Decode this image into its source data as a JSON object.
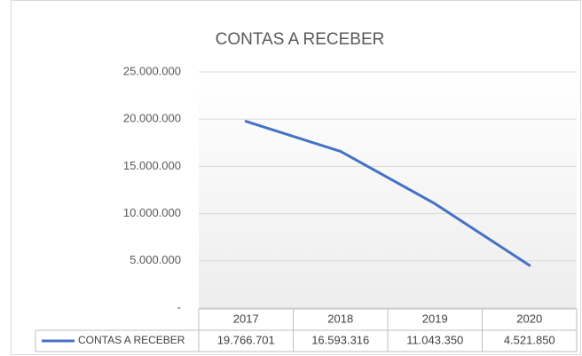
{
  "chart_data": {
    "type": "line",
    "title": "CONTAS A RECEBER",
    "categories": [
      "2017",
      "2018",
      "2019",
      "2020"
    ],
    "series": [
      {
        "name": "CONTAS A RECEBER",
        "color": "#4472c4",
        "values": [
          19766701,
          16593316,
          11043350,
          4521850
        ],
        "value_labels": [
          "19.766.701",
          "16.593.316",
          "11.043.350",
          "4.521.850"
        ]
      }
    ],
    "ylim": [
      0,
      25000000
    ],
    "yticks": [
      {
        "value": 0,
        "label": "-"
      },
      {
        "value": 5000000,
        "label": "5.000.000"
      },
      {
        "value": 10000000,
        "label": "10.000.000"
      },
      {
        "value": 15000000,
        "label": "15.000.000"
      },
      {
        "value": 20000000,
        "label": "20.000.000"
      },
      {
        "value": 25000000,
        "label": "25.000.000"
      }
    ],
    "grid": true,
    "data_table": true
  }
}
